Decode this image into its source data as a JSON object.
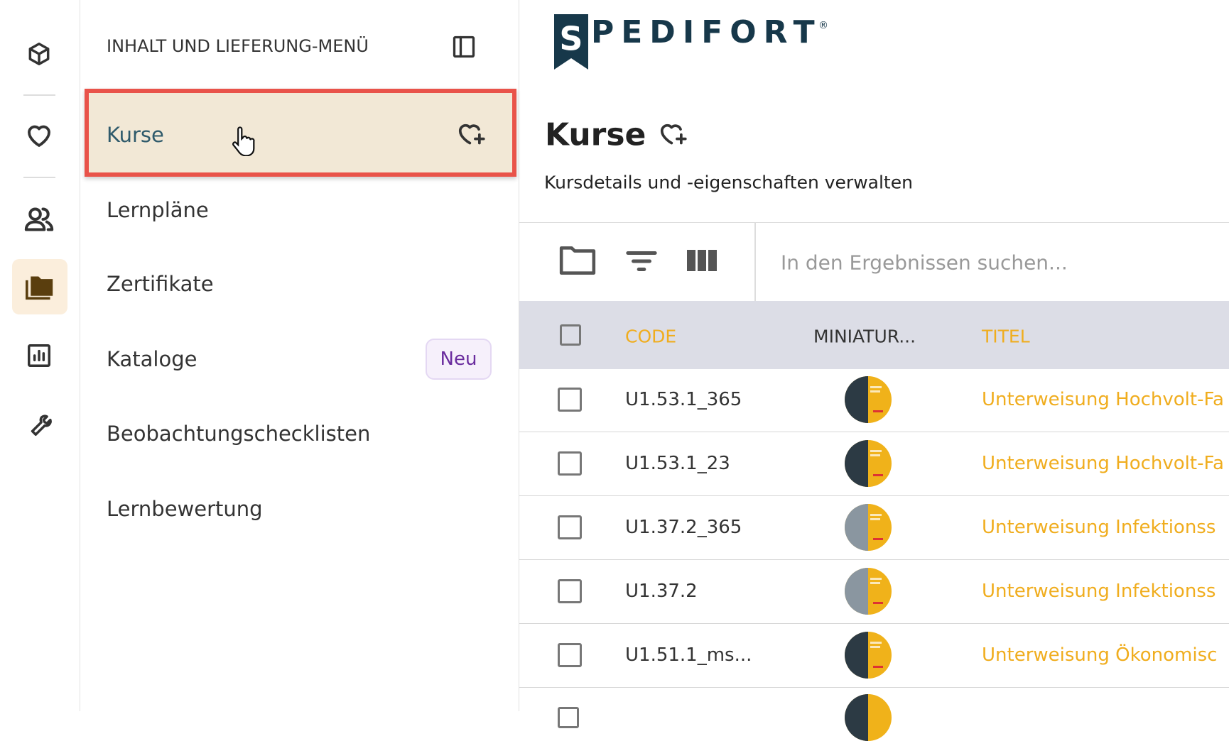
{
  "menu": {
    "header": "INHALT UND LIEFERUNG-MENÜ",
    "items": [
      {
        "label": "Kurse"
      },
      {
        "label": "Lernpläne"
      },
      {
        "label": "Zertifikate"
      },
      {
        "label": "Kataloge",
        "badge": "Neu"
      },
      {
        "label": "Beobachtungschecklisten"
      },
      {
        "label": "Lernbewertung"
      }
    ]
  },
  "logo": {
    "initial": "S",
    "text": "PEDIFORT",
    "registered": "®"
  },
  "header": {
    "title": "Kurse",
    "subtitle": "Kursdetails und -eigenschaften verwalten"
  },
  "toolbar": {
    "search_placeholder": "In den Ergebnissen suchen..."
  },
  "table": {
    "columns": [
      "CODE",
      "MINIATUR...",
      "TITEL"
    ],
    "rows": [
      {
        "code": "U1.53.1_365",
        "title": "Unterweisung Hochvolt-Fa"
      },
      {
        "code": "U1.53.1_23",
        "title": "Unterweisung Hochvolt-Fa"
      },
      {
        "code": "U1.37.2_365",
        "title": "Unterweisung Infektionss"
      },
      {
        "code": "U1.37.2",
        "title": "Unterweisung Infektionss"
      },
      {
        "code": "U1.51.1_ms...",
        "title": "Unterweisung Ökonomisc"
      }
    ]
  }
}
